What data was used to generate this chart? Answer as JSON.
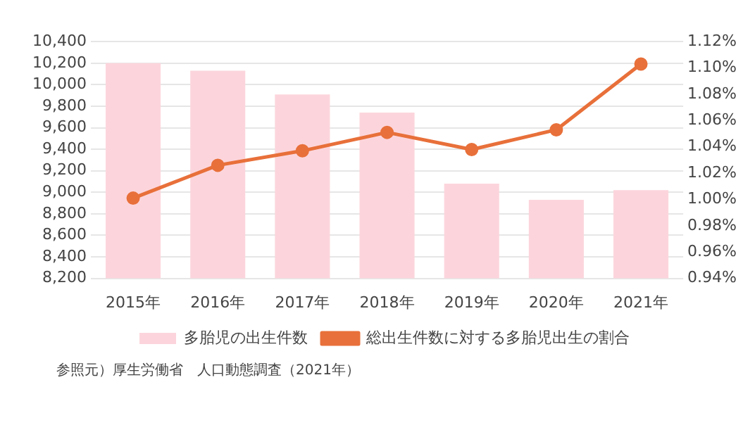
{
  "chart_data": {
    "type": "bar",
    "categories": [
      "2015年",
      "2016年",
      "2017年",
      "2018年",
      "2019年",
      "2020年",
      "2021年"
    ],
    "series": [
      {
        "name": "多胎児の出生件数",
        "color": "#fcd5dc",
        "values": [
          10200,
          10130,
          9910,
          9740,
          9080,
          8930,
          9020
        ]
      },
      {
        "name": "総出生件数に対する多胎児出生の割合",
        "type": "line",
        "axis": "y2",
        "color": "#e8703a",
        "values": [
          1.001,
          1.026,
          1.037,
          1.051,
          1.038,
          1.053,
          1.103
        ]
      }
    ],
    "ylim": [
      8200,
      10400
    ],
    "yticks": [
      {
        "value": 8200,
        "label": "8,200"
      },
      {
        "value": 8400,
        "label": "8,400"
      },
      {
        "value": 8600,
        "label": "8,600"
      },
      {
        "value": 8800,
        "label": "8,800"
      },
      {
        "value": 9000,
        "label": "9,000"
      },
      {
        "value": 9200,
        "label": "9,200"
      },
      {
        "value": 9400,
        "label": "9,400"
      },
      {
        "value": 9600,
        "label": "9,600"
      },
      {
        "value": 9800,
        "label": "9,800"
      },
      {
        "value": 10000,
        "label": "10,000"
      },
      {
        "value": 10200,
        "label": "10,200"
      },
      {
        "value": 10400,
        "label": "10,400"
      }
    ],
    "y2lim": [
      0.94,
      1.12
    ],
    "y2ticks": [
      {
        "value": 0.94,
        "label": "0.94%"
      },
      {
        "value": 0.96,
        "label": "0.96%"
      },
      {
        "value": 0.98,
        "label": "0.98%"
      },
      {
        "value": 1.0,
        "label": "1.00%"
      },
      {
        "value": 1.02,
        "label": "1.02%"
      },
      {
        "value": 1.04,
        "label": "1.04%"
      },
      {
        "value": 1.06,
        "label": "1.06%"
      },
      {
        "value": 1.08,
        "label": "1.08%"
      },
      {
        "value": 1.1,
        "label": "1.10%"
      },
      {
        "value": 1.12,
        "label": "1.12%"
      }
    ],
    "grid": "y",
    "legend": "bottom",
    "marker": "circle",
    "line_style": "solid",
    "annotations": [
      "参照元）厚生労働省　人口動態調査（2021年）"
    ]
  }
}
